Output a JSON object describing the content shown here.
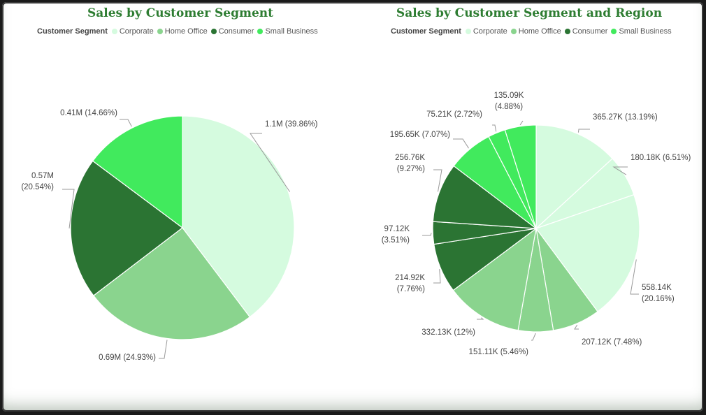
{
  "colors": {
    "Corporate": "#d5fbdf",
    "Home Office": "#8ad48e",
    "Consumer": "#2b7433",
    "Small Business": "#41ea5d"
  },
  "chart_data": [
    {
      "type": "pie",
      "title": "Sales by Customer Segment",
      "legend_title": "Customer Segment",
      "legend": [
        "Corporate",
        "Home Office",
        "Consumer",
        "Small Business"
      ],
      "legend_position": "top-left",
      "slices": [
        {
          "segment": "Corporate",
          "value": 1.1,
          "label": "1.1M (39.86%)"
        },
        {
          "segment": "Home Office",
          "value": 0.69,
          "label": "0.69M (24.93%)"
        },
        {
          "segment": "Consumer",
          "value": 0.57,
          "label": "0.57M (20.54%)"
        },
        {
          "segment": "Small Business",
          "value": 0.41,
          "label": "0.41M (14.66%)"
        }
      ]
    },
    {
      "type": "pie",
      "title": "Sales by Customer Segment and Region",
      "legend_title": "Customer Segment",
      "legend": [
        "Corporate",
        "Home Office",
        "Consumer",
        "Small Business"
      ],
      "legend_position": "top-left",
      "slices": [
        {
          "segment": "Corporate",
          "value": 365.27,
          "label": "365.27K (13.19%)"
        },
        {
          "segment": "Corporate",
          "value": 180.18,
          "label": "180.18K (6.51%)"
        },
        {
          "segment": "Corporate",
          "value": 558.14,
          "label": "558.14K (20.16%)"
        },
        {
          "segment": "Home Office",
          "value": 207.12,
          "label": "207.12K (7.48%)"
        },
        {
          "segment": "Home Office",
          "value": 151.11,
          "label": "151.11K (5.46%)"
        },
        {
          "segment": "Home Office",
          "value": 332.13,
          "label": "332.13K (12%)"
        },
        {
          "segment": "Consumer",
          "value": 214.92,
          "label": "214.92K (7.76%)"
        },
        {
          "segment": "Consumer",
          "value": 97.12,
          "label": "97.12K (3.51%)"
        },
        {
          "segment": "Consumer",
          "value": 256.76,
          "label": "256.76K (9.27%)"
        },
        {
          "segment": "Small Business",
          "value": 195.65,
          "label": "195.65K (7.07%)"
        },
        {
          "segment": "Small Business",
          "value": 75.21,
          "label": "75.21K (2.72%)"
        },
        {
          "segment": "Small Business",
          "value": 135.09,
          "label": "135.09K (4.88%)"
        }
      ]
    }
  ]
}
